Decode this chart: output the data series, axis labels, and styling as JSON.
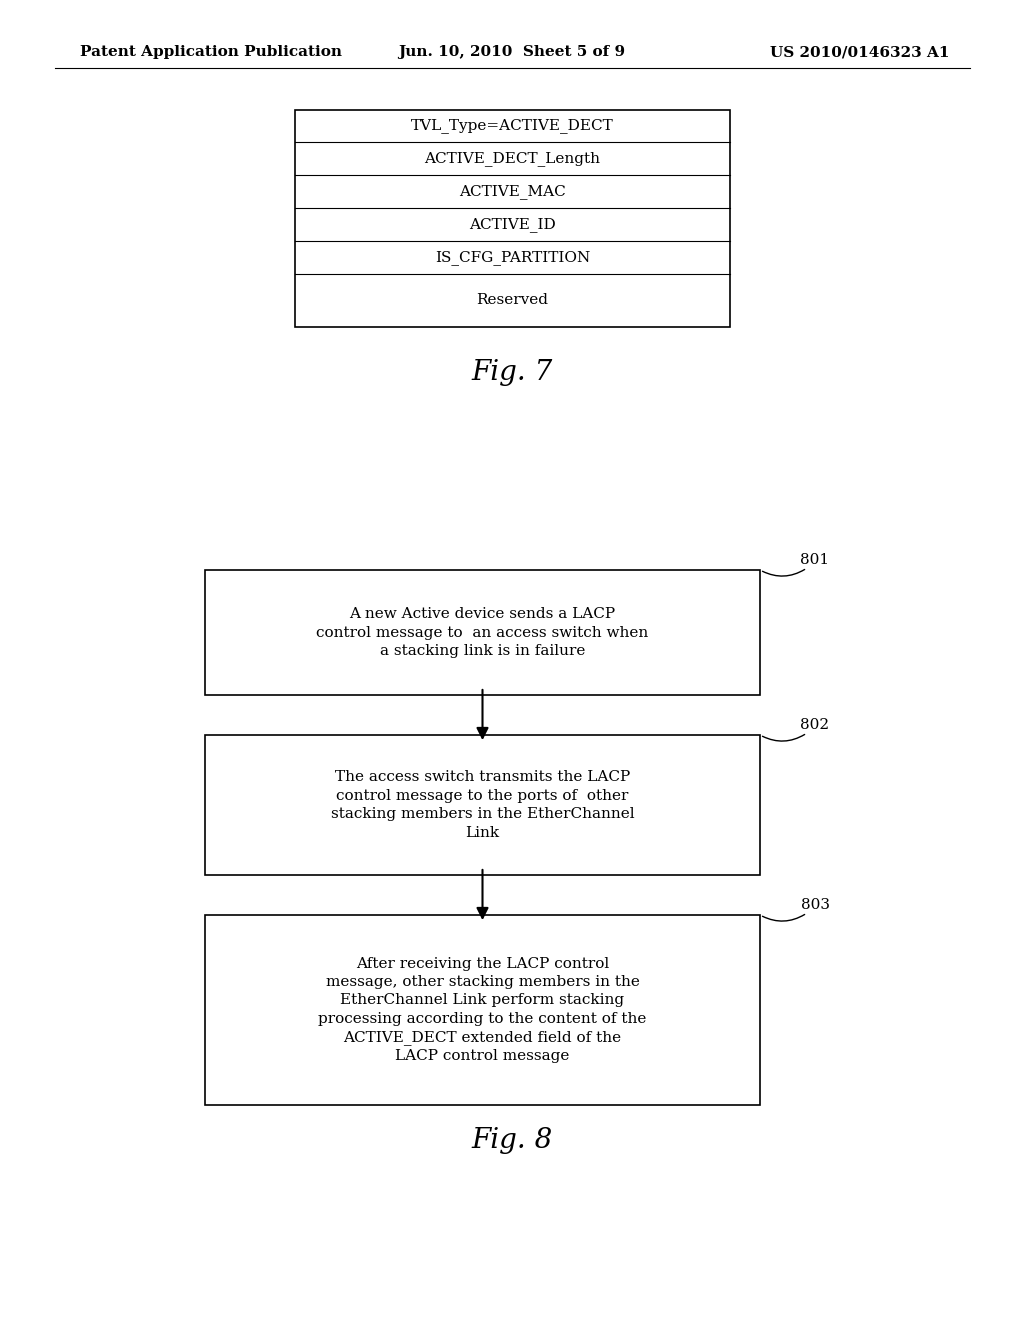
{
  "background_color": "#ffffff",
  "header_left": "Patent Application Publication",
  "header_center": "Jun. 10, 2010  Sheet 5 of 9",
  "header_right": "US 2010/0146323 A1",
  "header_fontsize": 11,
  "fig7": {
    "title": "Fig. 7",
    "rows": [
      "TVL_Type=ACTIVE_DECT",
      "ACTIVE_DECT_Length",
      "ACTIVE_MAC",
      "ACTIVE_ID",
      "IS_CFG_PARTITION",
      "Reserved"
    ],
    "row_heights": [
      1,
      1,
      1,
      1,
      1,
      1.6
    ],
    "fontsize": 11
  },
  "fig8": {
    "title": "Fig. 8",
    "boxes": [
      {
        "label": "A new Active device sends a LACP\ncontrol message to  an access switch when\na stacking link is in failure",
        "number": "801"
      },
      {
        "label": "The access switch transmits the LACP\ncontrol message to the ports of  other\nstacking members in the EtherChannel\nLink",
        "number": "802"
      },
      {
        "label": "After receiving the LACP control\nmessage, other stacking members in the\nEtherChannel Link perform stacking\nprocessing according to the content of the\nACTIVE_DECT extended field of the\nLACP control message",
        "number": "803"
      }
    ],
    "fontsize": 11
  }
}
